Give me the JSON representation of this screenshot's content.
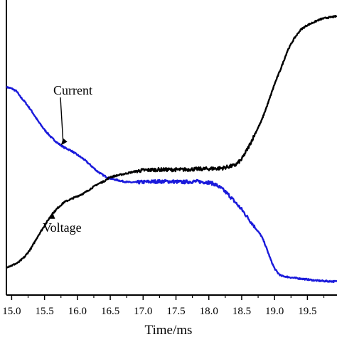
{
  "chart_data": {
    "type": "line",
    "title": "",
    "xlabel": "Time/ms",
    "ylabel": "",
    "xlim": [
      14.92,
      19.95
    ],
    "ylim": [
      0,
      1
    ],
    "x_ticks": [
      "15.0",
      "15.5",
      "16.0",
      "16.5",
      "17.0",
      "17.5",
      "18.0",
      "18.5",
      "19.0",
      "19.5"
    ],
    "grid": false,
    "legend": "none",
    "series": [
      {
        "name": "Current",
        "color": "#1a1adb",
        "x": [
          14.92,
          15.0,
          15.08,
          15.12,
          15.2,
          15.3,
          15.4,
          15.5,
          15.6,
          15.7,
          15.8,
          15.9,
          16.0,
          16.1,
          16.2,
          16.3,
          16.4,
          16.5,
          16.6,
          16.7,
          16.8,
          16.9,
          17.0,
          17.2,
          17.4,
          17.6,
          17.8,
          18.0,
          18.1,
          18.2,
          18.3,
          18.4,
          18.5,
          18.6,
          18.7,
          18.8,
          18.85,
          18.9,
          18.95,
          19.0,
          19.05,
          19.1,
          19.3,
          19.5,
          19.6,
          19.7,
          19.8,
          19.95
        ],
        "values": [
          0.705,
          0.7,
          0.69,
          0.675,
          0.655,
          0.625,
          0.59,
          0.56,
          0.535,
          0.515,
          0.5,
          0.49,
          0.475,
          0.46,
          0.44,
          0.42,
          0.405,
          0.395,
          0.39,
          0.385,
          0.382,
          0.382,
          0.383,
          0.385,
          0.385,
          0.383,
          0.385,
          0.382,
          0.375,
          0.36,
          0.34,
          0.315,
          0.29,
          0.26,
          0.23,
          0.2,
          0.175,
          0.145,
          0.115,
          0.09,
          0.075,
          0.065,
          0.058,
          0.053,
          0.05,
          0.048,
          0.047,
          0.046
        ]
      },
      {
        "name": "Voltage",
        "color": "#000000",
        "x": [
          14.92,
          15.0,
          15.1,
          15.2,
          15.3,
          15.4,
          15.5,
          15.6,
          15.7,
          15.8,
          15.9,
          16.0,
          16.1,
          16.2,
          16.3,
          16.4,
          16.5,
          16.6,
          16.7,
          16.8,
          16.9,
          17.0,
          17.2,
          17.4,
          17.6,
          17.8,
          18.0,
          18.2,
          18.4,
          18.5,
          18.6,
          18.7,
          18.8,
          18.9,
          19.0,
          19.1,
          19.2,
          19.3,
          19.4,
          19.5,
          19.6,
          19.7,
          19.8,
          19.95
        ],
        "values": [
          0.095,
          0.1,
          0.11,
          0.13,
          0.16,
          0.2,
          0.235,
          0.27,
          0.295,
          0.315,
          0.325,
          0.335,
          0.345,
          0.36,
          0.375,
          0.385,
          0.4,
          0.405,
          0.41,
          0.415,
          0.42,
          0.423,
          0.425,
          0.425,
          0.425,
          0.427,
          0.428,
          0.43,
          0.44,
          0.46,
          0.5,
          0.545,
          0.59,
          0.65,
          0.715,
          0.77,
          0.83,
          0.87,
          0.9,
          0.915,
          0.925,
          0.935,
          0.94,
          0.945
        ]
      }
    ],
    "annotations": [
      {
        "text": "Current",
        "points_to": "Current",
        "at_x": 15.75
      },
      {
        "text": "Voltage",
        "points_to": "Voltage",
        "at_x": 15.65
      }
    ]
  }
}
